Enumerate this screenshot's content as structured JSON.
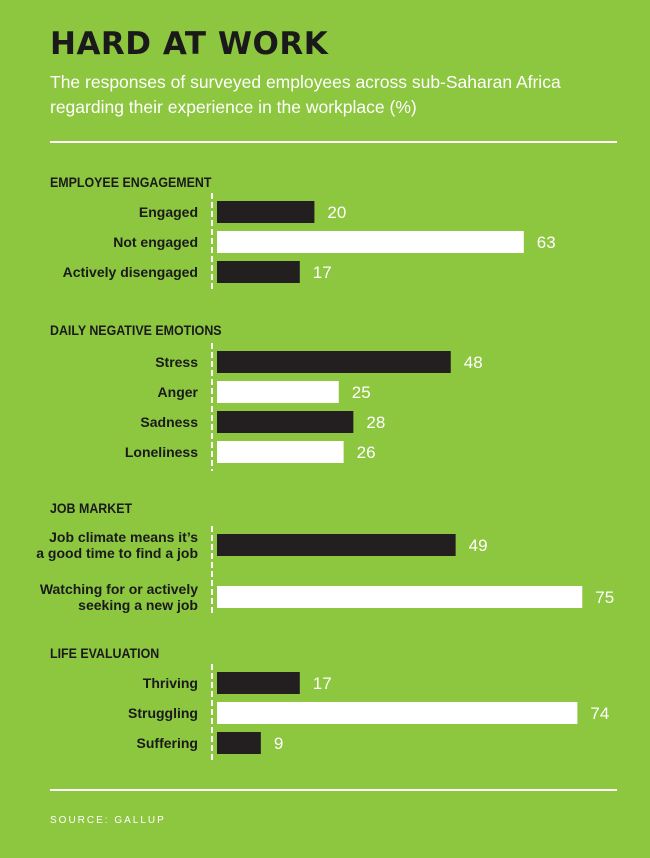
{
  "header": {
    "title": "HARD AT WORK",
    "subtitle": "The responses of surveyed employees across sub-Saharan Africa regarding their experience in the workplace (%)"
  },
  "footer": {
    "source": "SOURCE: GALLUP"
  },
  "colors": {
    "background": "#8dc63f",
    "dark_bar": "#231f20",
    "light_bar": "#ffffff",
    "label_text": "#1a1a1a",
    "value_text": "#ffffff"
  },
  "chart_data": {
    "type": "bar",
    "orientation": "horizontal",
    "xlim": [
      0,
      75
    ],
    "grid": false,
    "legend": "none",
    "groups": [
      {
        "title": "EMPLOYEE ENGAGEMENT",
        "items": [
          {
            "label": [
              "Engaged"
            ],
            "value": 20,
            "color": "dark"
          },
          {
            "label": [
              "Not engaged"
            ],
            "value": 63,
            "color": "light"
          },
          {
            "label": [
              "Actively disengaged"
            ],
            "value": 17,
            "color": "dark"
          }
        ]
      },
      {
        "title": "DAILY NEGATIVE EMOTIONS",
        "items": [
          {
            "label": [
              "Stress"
            ],
            "value": 48,
            "color": "dark"
          },
          {
            "label": [
              "Anger"
            ],
            "value": 25,
            "color": "light"
          },
          {
            "label": [
              "Sadness"
            ],
            "value": 28,
            "color": "dark"
          },
          {
            "label": [
              "Loneliness"
            ],
            "value": 26,
            "color": "light"
          }
        ]
      },
      {
        "title": "JOB MARKET",
        "items": [
          {
            "label": [
              "Job climate means it’s",
              "a good time to find a job"
            ],
            "value": 49,
            "color": "dark"
          },
          {
            "label": [
              "Watching for or actively",
              "seeking a new job"
            ],
            "value": 75,
            "color": "light"
          }
        ]
      },
      {
        "title": "LIFE EVALUATION",
        "items": [
          {
            "label": [
              "Thriving"
            ],
            "value": 17,
            "color": "dark"
          },
          {
            "label": [
              "Struggling"
            ],
            "value": 74,
            "color": "light"
          },
          {
            "label": [
              "Suffering"
            ],
            "value": 9,
            "color": "dark"
          }
        ]
      }
    ]
  }
}
